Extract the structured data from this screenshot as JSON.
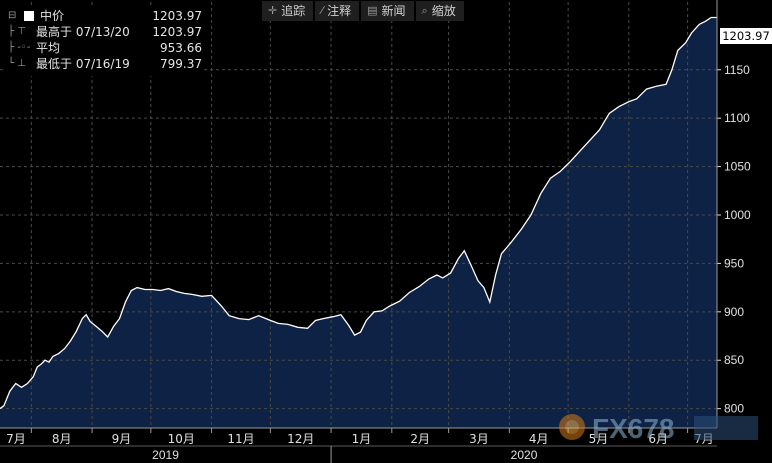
{
  "toolbar": {
    "items": [
      {
        "label": "追踪",
        "icon": "crosshair-icon"
      },
      {
        "label": "注释",
        "icon": "pencil-icon"
      },
      {
        "label": "新闻",
        "icon": "news-icon"
      },
      {
        "label": "缩放",
        "icon": "zoom-icon"
      }
    ]
  },
  "legend": {
    "series_name": "中价",
    "series_value": "1203.97",
    "high_label": "最高于 07/13/20",
    "high_value": "1203.97",
    "avg_label": "平均",
    "avg_value": "953.66",
    "low_label": "最低于 07/16/19",
    "low_value": "799.37"
  },
  "last_value": "1203.97",
  "watermark_text": "FX678",
  "colors": {
    "background": "#000000",
    "area_fill": "#0d2244",
    "line": "#ffffff",
    "grid": "#4a4a4a",
    "axis_text": "#e0e0e0"
  },
  "chart_data": {
    "type": "area",
    "title": "",
    "xlabel": "",
    "ylabel": "",
    "ylim": [
      780,
      1220
    ],
    "y_ticks": [
      800,
      850,
      900,
      950,
      1000,
      1050,
      1100,
      1150
    ],
    "x_month_labels": [
      "7月",
      "8月",
      "9月",
      "10月",
      "11月",
      "12月",
      "1月",
      "2月",
      "3月",
      "4月",
      "5月",
      "6月",
      "7月"
    ],
    "x_year_labels": [
      "2019",
      "2020"
    ],
    "x_range": [
      "2019-07-16",
      "2020-07-16"
    ],
    "grid": true,
    "series": [
      {
        "name": "中价",
        "points": [
          [
            "2019-07-16",
            800
          ],
          [
            "2019-07-18",
            803
          ],
          [
            "2019-07-21",
            818
          ],
          [
            "2019-07-24",
            826
          ],
          [
            "2019-07-27",
            822
          ],
          [
            "2019-07-30",
            826
          ],
          [
            "2019-08-02",
            833
          ],
          [
            "2019-08-04",
            843
          ],
          [
            "2019-08-06",
            846
          ],
          [
            "2019-08-08",
            850
          ],
          [
            "2019-08-10",
            848
          ],
          [
            "2019-08-12",
            854
          ],
          [
            "2019-08-15",
            857
          ],
          [
            "2019-08-18",
            862
          ],
          [
            "2019-08-21",
            870
          ],
          [
            "2019-08-24",
            880
          ],
          [
            "2019-08-27",
            893
          ],
          [
            "2019-08-29",
            897
          ],
          [
            "2019-08-31",
            890
          ],
          [
            "2019-09-03",
            885
          ],
          [
            "2019-09-06",
            880
          ],
          [
            "2019-09-09",
            874
          ],
          [
            "2019-09-12",
            885
          ],
          [
            "2019-09-15",
            893
          ],
          [
            "2019-09-18",
            910
          ],
          [
            "2019-09-21",
            922
          ],
          [
            "2019-09-24",
            925
          ],
          [
            "2019-09-28",
            923
          ],
          [
            "2019-10-02",
            923
          ],
          [
            "2019-10-06",
            922
          ],
          [
            "2019-10-10",
            924
          ],
          [
            "2019-10-14",
            921
          ],
          [
            "2019-10-18",
            919
          ],
          [
            "2019-10-22",
            918
          ],
          [
            "2019-10-27",
            916
          ],
          [
            "2019-11-01",
            917
          ],
          [
            "2019-11-06",
            906
          ],
          [
            "2019-11-10",
            896
          ],
          [
            "2019-11-15",
            893
          ],
          [
            "2019-11-20",
            892
          ],
          [
            "2019-11-25",
            896
          ],
          [
            "2019-11-30",
            892
          ],
          [
            "2019-12-05",
            888
          ],
          [
            "2019-12-10",
            887
          ],
          [
            "2019-12-15",
            884
          ],
          [
            "2019-12-20",
            883
          ],
          [
            "2019-12-24",
            891
          ],
          [
            "2019-12-28",
            893
          ],
          [
            "2020-01-02",
            895
          ],
          [
            "2020-01-06",
            897
          ],
          [
            "2020-01-10",
            886
          ],
          [
            "2020-01-13",
            876
          ],
          [
            "2020-01-16",
            879
          ],
          [
            "2020-01-19",
            891
          ],
          [
            "2020-01-23",
            900
          ],
          [
            "2020-01-27",
            901
          ],
          [
            "2020-01-31",
            906
          ],
          [
            "2020-02-05",
            911
          ],
          [
            "2020-02-10",
            920
          ],
          [
            "2020-02-15",
            926
          ],
          [
            "2020-02-20",
            934
          ],
          [
            "2020-02-24",
            938
          ],
          [
            "2020-02-27",
            935
          ],
          [
            "2020-03-02",
            940
          ],
          [
            "2020-03-06",
            955
          ],
          [
            "2020-03-09",
            963
          ],
          [
            "2020-03-12",
            950
          ],
          [
            "2020-03-16",
            932
          ],
          [
            "2020-03-19",
            925
          ],
          [
            "2020-03-22",
            910
          ],
          [
            "2020-03-25",
            938
          ],
          [
            "2020-03-28",
            960
          ],
          [
            "2020-04-02",
            972
          ],
          [
            "2020-04-07",
            985
          ],
          [
            "2020-04-12",
            1000
          ],
          [
            "2020-04-17",
            1022
          ],
          [
            "2020-04-22",
            1038
          ],
          [
            "2020-04-27",
            1045
          ],
          [
            "2020-05-02",
            1055
          ],
          [
            "2020-05-07",
            1066
          ],
          [
            "2020-05-12",
            1077
          ],
          [
            "2020-05-17",
            1088
          ],
          [
            "2020-05-22",
            1105
          ],
          [
            "2020-05-27",
            1112
          ],
          [
            "2020-06-01",
            1117
          ],
          [
            "2020-06-05",
            1120
          ],
          [
            "2020-06-10",
            1130
          ],
          [
            "2020-06-15",
            1133
          ],
          [
            "2020-06-20",
            1135
          ],
          [
            "2020-06-23",
            1150
          ],
          [
            "2020-06-26",
            1170
          ],
          [
            "2020-06-30",
            1178
          ],
          [
            "2020-07-03",
            1188
          ],
          [
            "2020-07-07",
            1197
          ],
          [
            "2020-07-10",
            1200
          ],
          [
            "2020-07-13",
            1203.97
          ],
          [
            "2020-07-16",
            1203.97
          ]
        ]
      }
    ]
  }
}
